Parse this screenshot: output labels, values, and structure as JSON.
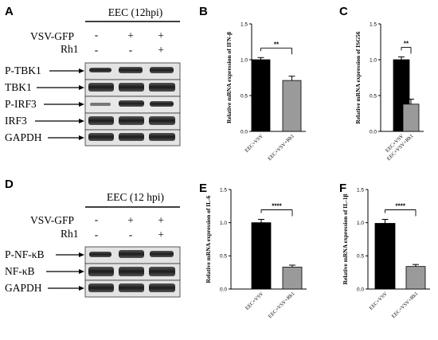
{
  "panels": {
    "A": {
      "letter": "A",
      "header": "EEC (12hpi)",
      "treatments": [
        {
          "name": "VSV-GFP",
          "signs": [
            "-",
            "+",
            "+"
          ]
        },
        {
          "name": "Rh1",
          "signs": [
            "-",
            "-",
            "+"
          ]
        }
      ],
      "blots": [
        "P-TBK1",
        "TBK1",
        "P-IRF3",
        "IRF3",
        "GAPDH"
      ]
    },
    "D": {
      "letter": "D",
      "header": "EEC (12 hpi)",
      "treatments": [
        {
          "name": "VSV-GFP",
          "signs": [
            "-",
            "+",
            "+"
          ]
        },
        {
          "name": "Rh1",
          "signs": [
            "-",
            "-",
            "+"
          ]
        }
      ],
      "blots": [
        "P-NF-κB",
        "NF-κB",
        "GAPDH"
      ]
    }
  },
  "colors": {
    "bar1": "#000000",
    "bar2": "#9a9a9a"
  },
  "chart_data": [
    {
      "panel": "B",
      "type": "bar",
      "categories": [
        "EEC+VSV",
        "EEC+VSV+Rh1"
      ],
      "values": [
        1.0,
        0.71
      ],
      "errors": [
        0.03,
        0.06
      ],
      "ylabel": "Relative mRNA expression of IFN-β",
      "ylim": [
        0,
        1.5
      ],
      "yticks": [
        "0.0",
        "0.5",
        "1.0",
        "1.5"
      ],
      "significance": "**"
    },
    {
      "panel": "C",
      "type": "bar",
      "categories": [
        "EEC+VSV",
        "EEC+VSV+Rh1"
      ],
      "values": [
        1.0,
        0.38
      ],
      "errors": [
        0.04,
        0.07
      ],
      "ylabel": "Relative mRNA expression of ISG56",
      "ylim": [
        0,
        1.5
      ],
      "yticks": [
        "0.0",
        "0.5",
        "1.0",
        "1.5"
      ],
      "significance": "**"
    },
    {
      "panel": "E",
      "type": "bar",
      "categories": [
        "EEC+VSV",
        "EEC+VSV+Rh1"
      ],
      "values": [
        1.0,
        0.33
      ],
      "errors": [
        0.05,
        0.03
      ],
      "ylabel": "Relative mRNA expression of IL-6",
      "ylim": [
        0,
        1.5
      ],
      "yticks": [
        "0.0",
        "0.5",
        "1.0",
        "1.5"
      ],
      "significance": "****"
    },
    {
      "panel": "F",
      "type": "bar",
      "categories": [
        "EEC+VSV",
        "EEC+VSV+Rh1"
      ],
      "values": [
        0.99,
        0.34
      ],
      "errors": [
        0.06,
        0.03
      ],
      "ylabel": "Relative mRNA expression of IL-1β",
      "ylim": [
        0,
        1.5
      ],
      "yticks": [
        "0.0",
        "0.5",
        "1.0",
        "1.5"
      ],
      "significance": "****"
    }
  ]
}
